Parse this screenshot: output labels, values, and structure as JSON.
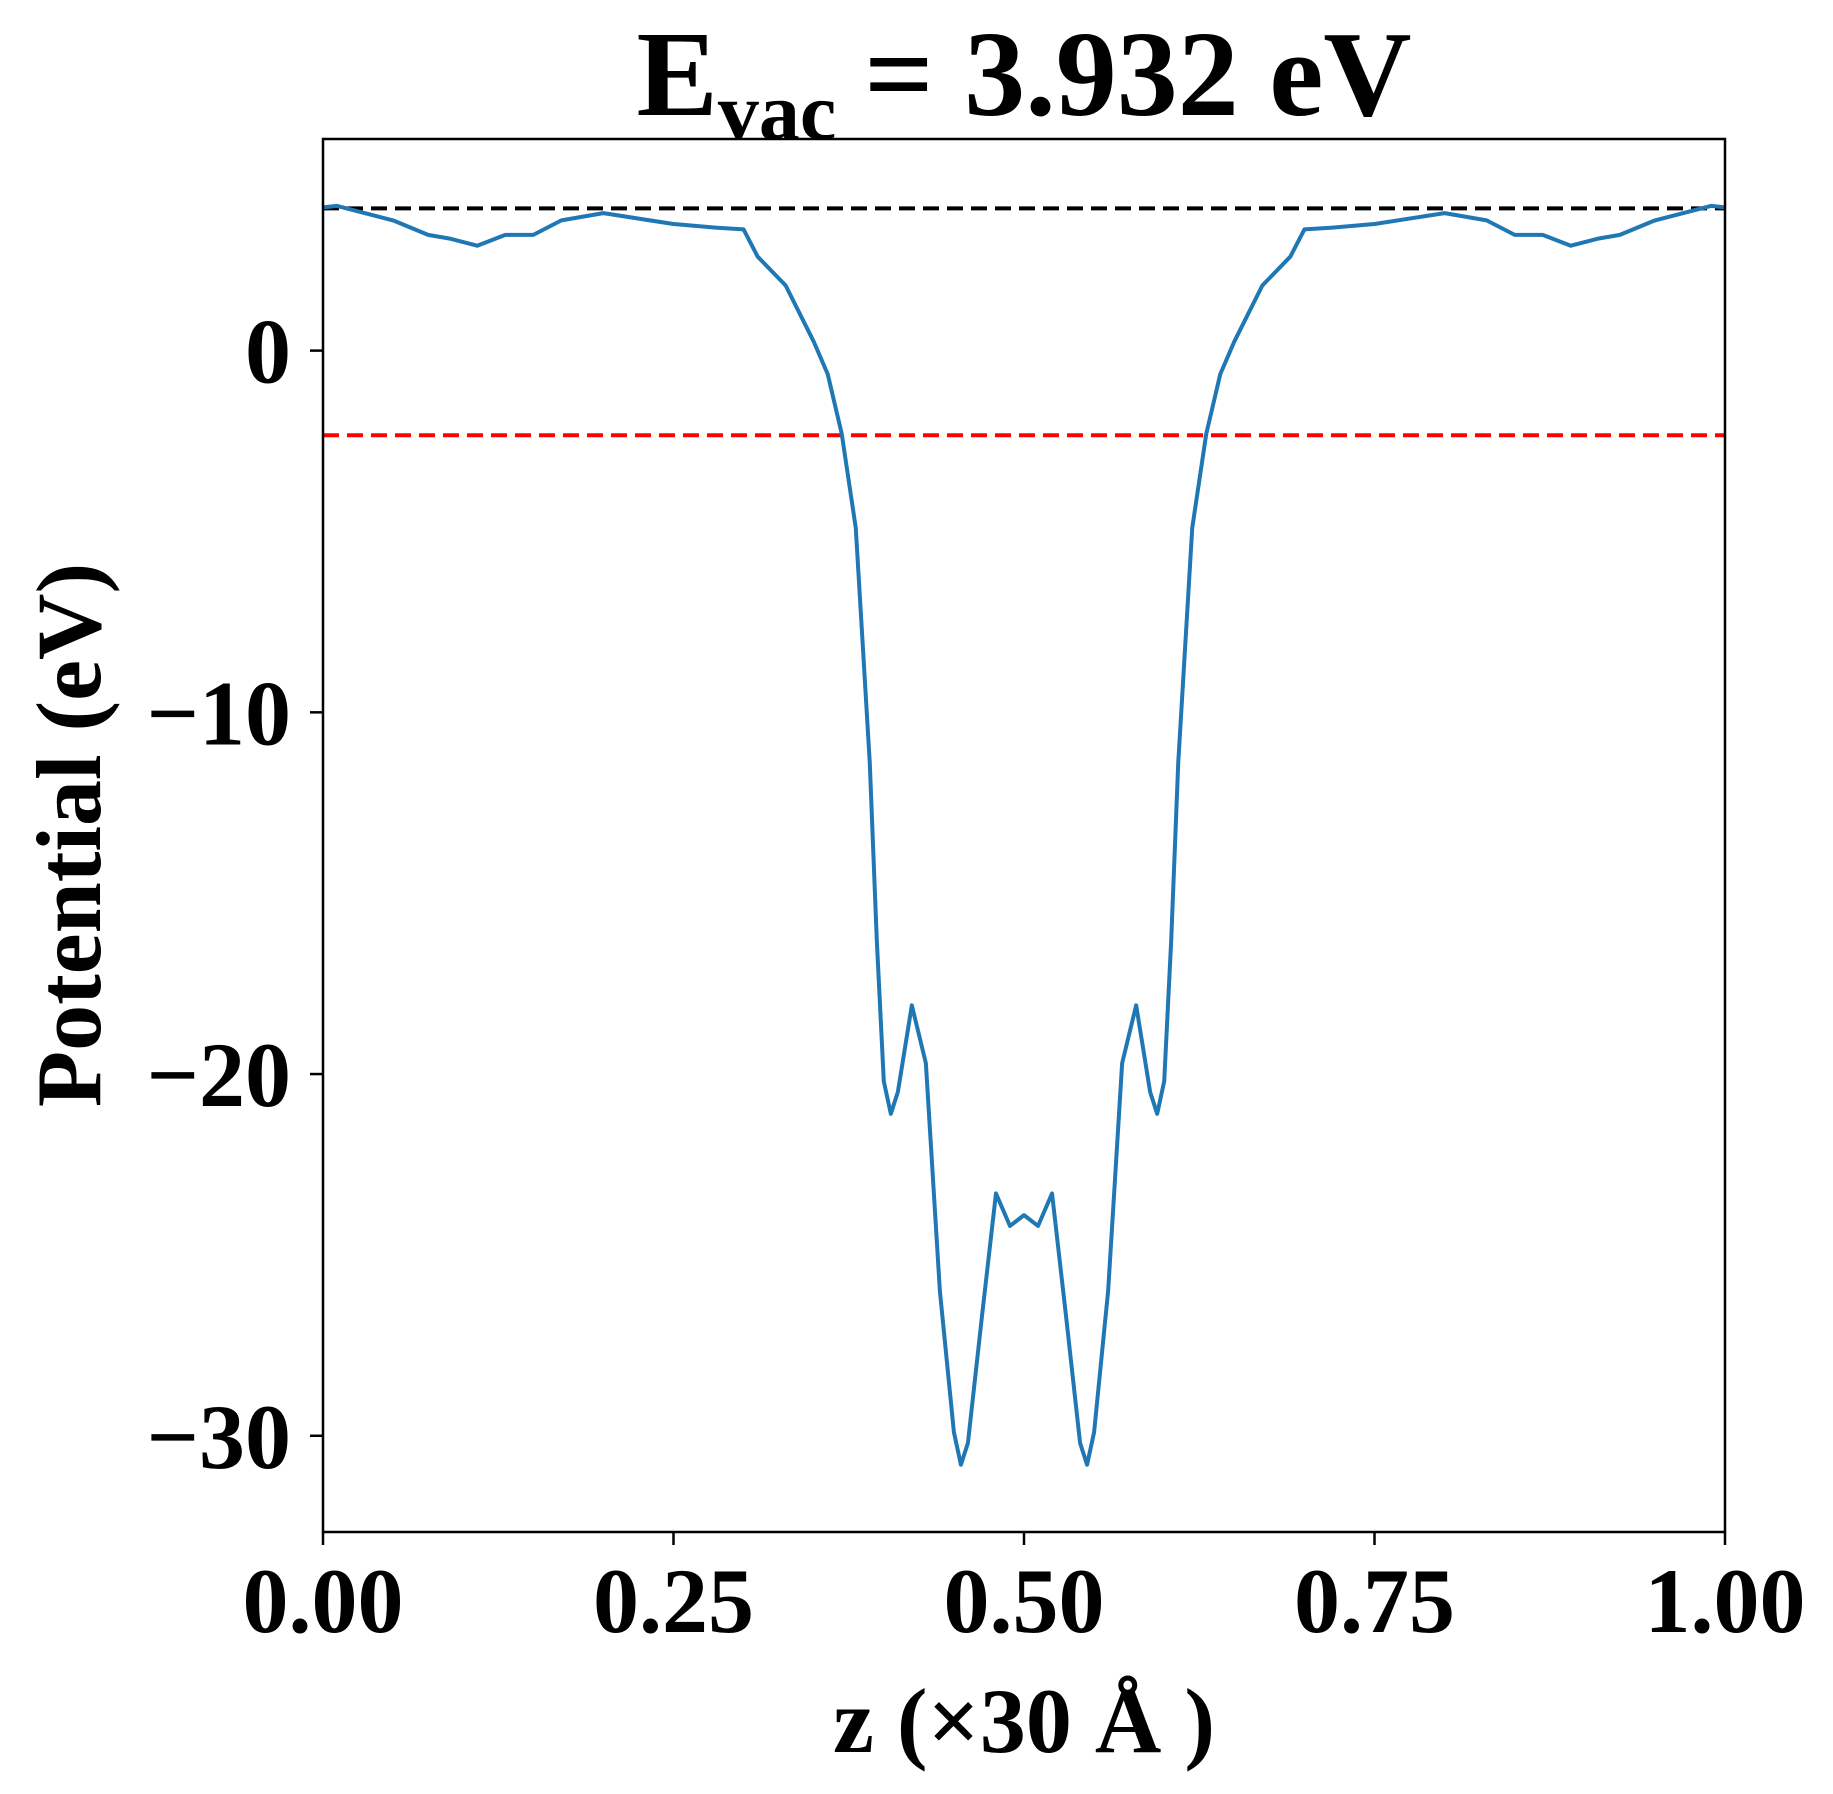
{
  "chart_data": {
    "type": "line",
    "title": {
      "main": "E",
      "sub": "vac",
      "rest": "= 3.932 eV"
    },
    "x_label": "z (×30 Å )",
    "y_label": "Potential (eV)",
    "x": [
      0,
      0.01,
      0.03,
      0.05,
      0.075,
      0.09,
      0.11,
      0.13,
      0.15,
      0.17,
      0.2,
      0.25,
      0.28,
      0.3,
      0.31,
      0.33,
      0.35,
      0.36,
      0.37,
      0.38,
      0.39,
      0.395,
      0.4,
      0.405,
      0.41,
      0.42,
      0.43,
      0.44,
      0.45,
      0.455,
      0.46,
      0.47,
      0.48,
      0.49,
      0.5,
      0.51,
      0.52,
      0.53,
      0.54,
      0.545,
      0.55,
      0.56,
      0.57,
      0.58,
      0.59,
      0.595,
      0.6,
      0.605,
      0.61,
      0.62,
      0.63,
      0.64,
      0.65,
      0.67,
      0.69,
      0.7,
      0.72,
      0.75,
      0.8,
      0.83,
      0.85,
      0.87,
      0.89,
      0.91,
      0.925,
      0.95,
      0.97,
      0.99,
      1.0
    ],
    "series": [
      {
        "color": "#1f77b4",
        "values": [
          3.96,
          4.0,
          3.8,
          3.6,
          3.2,
          3.1,
          2.9,
          3.2,
          3.2,
          3.6,
          3.8,
          3.5,
          3.4,
          3.35,
          2.6,
          1.8,
          0.25,
          -0.65,
          -2.3,
          -4.9,
          -11.4,
          -16.3,
          -20.2,
          -21.1,
          -20.5,
          -18.1,
          -19.7,
          -26,
          -29.9,
          -30.8,
          -30.2,
          -26.7,
          -23.3,
          -24.2,
          -23.9,
          -24.2,
          -23.3,
          -26.7,
          -30.2,
          -30.8,
          -29.9,
          -26,
          -19.7,
          -18.1,
          -20.5,
          -21.1,
          -20.2,
          -16.3,
          -11.4,
          -4.9,
          -2.3,
          -0.65,
          0.25,
          1.8,
          2.6,
          3.35,
          3.4,
          3.5,
          3.8,
          3.6,
          3.2,
          3.2,
          2.9,
          3.1,
          3.2,
          3.6,
          3.8,
          4.0,
          3.96
        ]
      }
    ],
    "reference_lines": [
      {
        "value": 3.932,
        "color": "#000000"
      },
      {
        "value": -2.34,
        "color": "#ff0000"
      }
    ],
    "xlim": [
      0,
      1
    ],
    "ylim": [
      -32.66,
      5.85
    ],
    "xticks": [
      {
        "value": 0,
        "label": "0.00"
      },
      0.25,
      {
        "value": 0.5,
        "label": "0.50"
      },
      0.75,
      {
        "value": 1,
        "label": "1.00"
      }
    ],
    "yticks": [
      {
        "value": 0,
        "label": "0"
      },
      {
        "value": -10,
        "label": "−10"
      },
      {
        "value": -20,
        "label": "−20"
      },
      {
        "value": -30,
        "label": "−30"
      }
    ]
  }
}
